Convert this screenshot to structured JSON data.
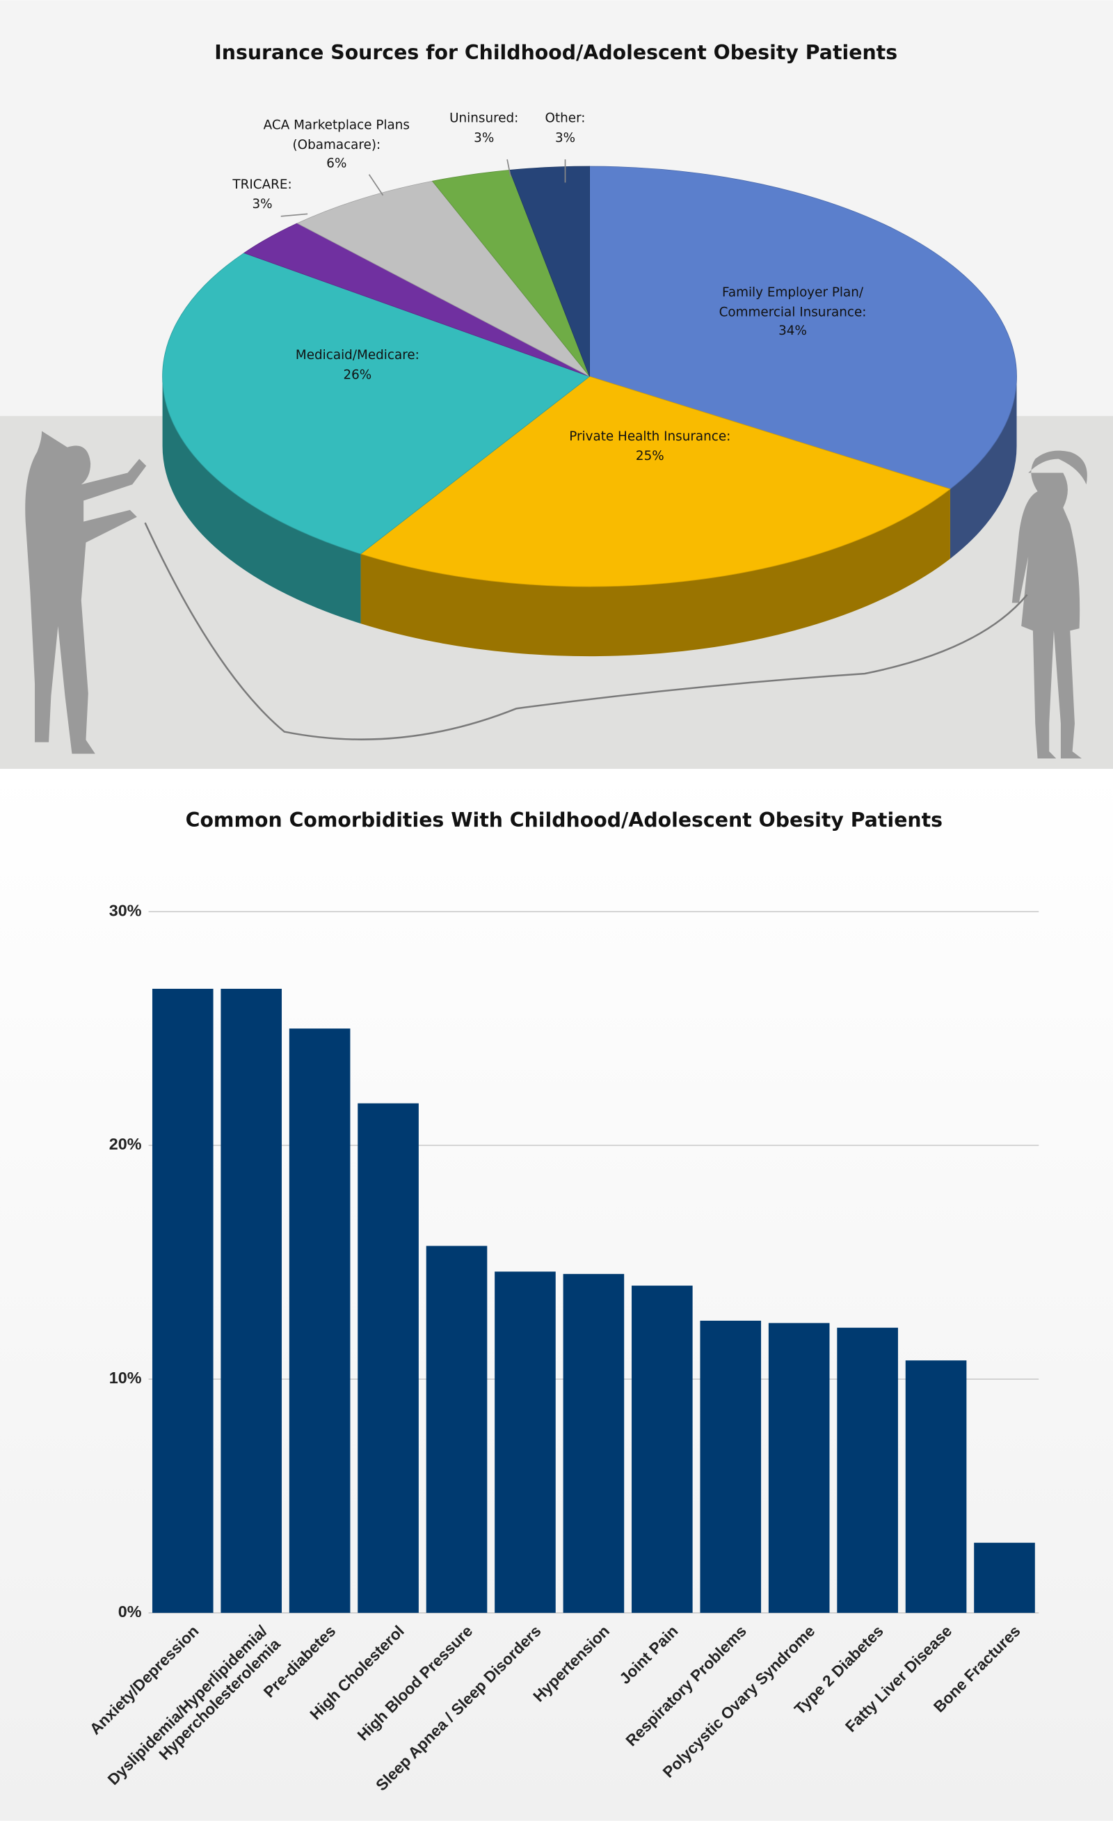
{
  "chart_data": [
    {
      "type": "pie3d",
      "title": "Insurance Sources for Childhood/Adolescent Obesity Patients",
      "categories": [
        "Family Employer Plan/ Commercial Insurance:",
        "Private Health Insurance:",
        "Medicaid/Medicare:",
        "TRICARE:",
        "ACA Marketplace Plans (Obamacare):",
        "Uninsured:",
        "Other:"
      ],
      "values": [
        34,
        25,
        26,
        3,
        6,
        3,
        3
      ],
      "value_labels": [
        "34%",
        "25%",
        "26%",
        "3%",
        "6%",
        "3%",
        "3%"
      ],
      "colors": [
        "#5b7fcc",
        "#f9bb00",
        "#35bcbc",
        "#7030a0",
        "#c0c0c0",
        "#6fac46",
        "#264478"
      ]
    },
    {
      "type": "bar",
      "title": "Common Comorbidities With Childhood/Adolescent Obesity Patients",
      "categories": [
        "Anxiety/Depression",
        "Dyslipidemia/Hyperlipidemia/ Hypercholesterolemia",
        "Pre-diabetes",
        "High Cholesterol",
        "High Blood Pressure",
        "Sleep Apnea / Sleep Disorders",
        "Hypertension",
        "Joint Pain",
        "Respiratory Problems",
        "Polycystic Ovary Syndrome",
        "Type 2 Diabetes",
        "Fatty Liver Disease",
        "Bone Fractures"
      ],
      "values": [
        26.7,
        26.7,
        25.0,
        21.8,
        15.7,
        14.6,
        14.5,
        14.0,
        12.5,
        12.4,
        12.2,
        10.8,
        3.0
      ],
      "color": "#003a70",
      "ylim": [
        0,
        30
      ],
      "yticks": [
        {
          "value": 0,
          "label": "0%"
        },
        {
          "value": 10,
          "label": "10%"
        },
        {
          "value": 20,
          "label": "20%"
        },
        {
          "value": 30,
          "label": "30%"
        }
      ],
      "grid": true
    }
  ]
}
